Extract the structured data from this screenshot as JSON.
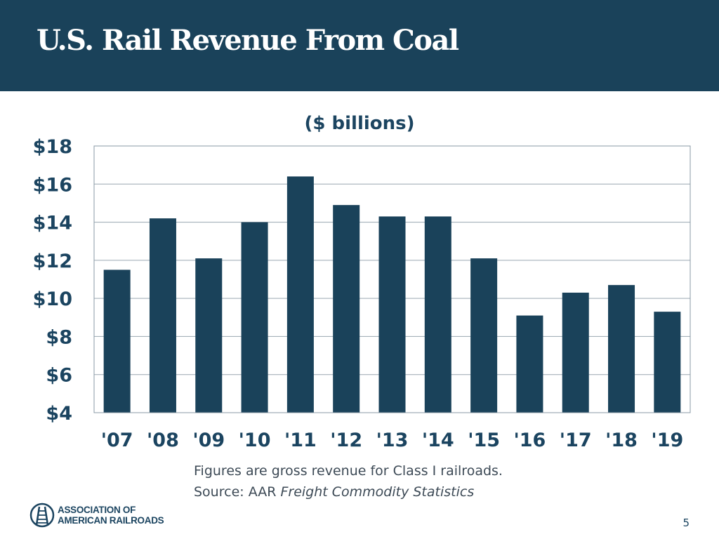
{
  "header": {
    "title": "U.S. Rail Revenue From Coal"
  },
  "chart_data": {
    "type": "bar",
    "title": "U.S. Rail Revenue From Coal",
    "subtitle": "($ billions)",
    "categories": [
      "'07",
      "'08",
      "'09",
      "'10",
      "'11",
      "'12",
      "'13",
      "'14",
      "'15",
      "'16",
      "'17",
      "'18",
      "'19"
    ],
    "values": [
      11.5,
      14.2,
      12.1,
      14.0,
      16.4,
      14.9,
      14.3,
      14.3,
      12.1,
      9.1,
      10.3,
      10.7,
      9.3
    ],
    "ylim": [
      4,
      18
    ],
    "yticks": [
      4,
      6,
      8,
      10,
      12,
      14,
      16,
      18
    ],
    "ytick_labels": [
      "$4",
      "$6",
      "$8",
      "$10",
      "$12",
      "$14",
      "$16",
      "$18"
    ],
    "xlabel": "",
    "ylabel": "",
    "grid": true,
    "bar_color": "#1a425a"
  },
  "notes": {
    "line1": "Figures are gross revenue for Class I railroads.",
    "line2_prefix": "Source: AAR ",
    "line2_italic": "Freight Commodity Statistics"
  },
  "logo": {
    "line1": "ASSOCIATION OF",
    "line2": "AMERICAN RAILROADS"
  },
  "page_number": "5",
  "colors": {
    "header_bg": "#1a425a",
    "bar": "#1a425a",
    "text": "#1b4460"
  }
}
